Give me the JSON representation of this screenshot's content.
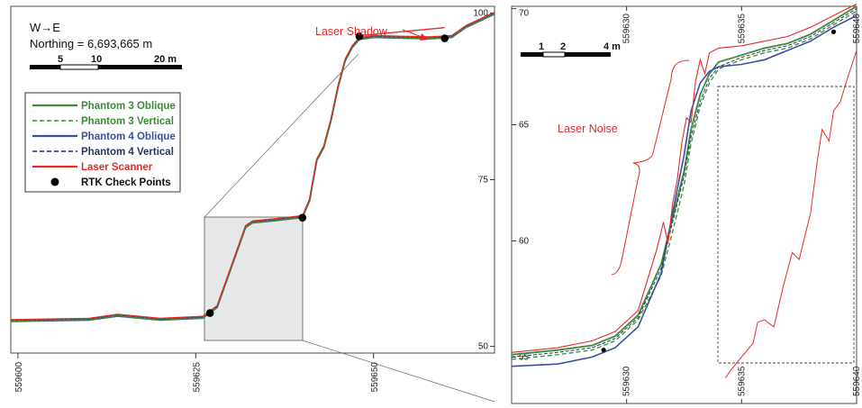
{
  "header": {
    "direction": "W→E",
    "northing": "Northing = 6,693,665 m"
  },
  "colors": {
    "phantom3": "#3a8a3a",
    "phantom4": "#3b4fa0",
    "phantom4_vertical": "#2b3560",
    "laser": "#e8292a",
    "annotation": "#e8292a",
    "check_point": "#000000",
    "zoom_box": "#e6e7e9"
  },
  "left_scale": {
    "ticks": [
      "5",
      "10",
      "20 m"
    ]
  },
  "right_scale": {
    "ticks": [
      "1",
      "2",
      "4 m"
    ]
  },
  "annotations": {
    "laser_shadow": "Laser Shadow",
    "laser_noise": "Laser Noise"
  },
  "legend": [
    {
      "label": "Phantom 3 Oblique",
      "style": "solid",
      "color_key": "phantom3"
    },
    {
      "label": "Phantom 3 Vertical",
      "style": "dashed",
      "color_key": "phantom3"
    },
    {
      "label": "Phantom 4 Oblique",
      "style": "solid",
      "color_key": "phantom4"
    },
    {
      "label": "Phantom 4 Vertical",
      "style": "dashed",
      "color_key": "phantom4_vertical"
    },
    {
      "label": "Laser Scanner",
      "style": "solid",
      "color_key": "laser"
    },
    {
      "label": "RTK Check Points",
      "style": "dot",
      "color_key": "check_point"
    }
  ],
  "chart_data": [
    {
      "type": "line",
      "panel": "full-profile",
      "x_ticks": [
        559600,
        559625,
        559650
      ],
      "x_tick_labels": [
        "559600",
        "559625",
        "559650"
      ],
      "y_ticks": [
        100,
        75,
        50
      ],
      "y_tick_labels": [
        "100",
        "75",
        "50"
      ],
      "xlim": [
        559599,
        559667
      ],
      "ylim": [
        49,
        101
      ],
      "grid": false,
      "legend_position": "left",
      "profile": {
        "x": [
          559599,
          559610,
          559614,
          559620,
          559626,
          559628,
          559630,
          559632,
          559633,
          559636,
          559640,
          559641,
          559642,
          559643,
          559644,
          559645,
          559646,
          559647,
          559648,
          559650,
          559654,
          559658,
          559661,
          559663,
          559667
        ],
        "y": [
          53.9,
          54.1,
          54.7,
          54.1,
          54.4,
          56,
          62,
          68,
          68.7,
          69,
          69.5,
          72,
          78,
          80,
          84,
          89,
          93,
          95,
          96.2,
          96.5,
          96.4,
          96.3,
          96.5,
          98,
          100
        ]
      },
      "laser_shadow_x": [
        559648,
        559660
      ],
      "laser_shadow_y": [
        96.6,
        97.8
      ],
      "rtk_check_points": [
        {
          "x": 559627,
          "y": 55.0
        },
        {
          "x": 559640,
          "y": 69.3
        },
        {
          "x": 559648,
          "y": 96.5
        },
        {
          "x": 559660,
          "y": 96.2
        }
      ]
    },
    {
      "type": "line",
      "panel": "zoomed-profile",
      "x_ticks": [
        559630,
        559635,
        559640
      ],
      "x_tick_labels": [
        "559630",
        "559635",
        "559640"
      ],
      "top_x_tick_labels": [
        "559630",
        "559635",
        "559640"
      ],
      "y_ticks": [
        55,
        60,
        65,
        70
      ],
      "y_tick_labels": [
        "55",
        "60",
        "65",
        "70"
      ],
      "xlim": [
        559625,
        559640
      ],
      "ylim": [
        53,
        70.1
      ],
      "grid": false,
      "series": [
        {
          "name": "Phantom 3 Oblique",
          "x": [
            559625,
            559627,
            559628.5,
            559629.5,
            559630.5,
            559631.5,
            559632,
            559632.5,
            559632.8,
            559633.2,
            559633.6,
            559634,
            559635,
            559636,
            559637,
            559638,
            559639,
            559640
          ],
          "y": [
            55.1,
            55.3,
            55.5,
            55.9,
            56.8,
            59.0,
            61.0,
            63.0,
            64.8,
            66.3,
            67.2,
            67.7,
            68.0,
            68.3,
            68.5,
            68.9,
            69.5,
            70.1
          ]
        },
        {
          "name": "Phantom 3 Vertical",
          "x": [
            559625,
            559627,
            559628.5,
            559629.5,
            559630.5,
            559631.5,
            559632,
            559632.5,
            559632.8,
            559633.2,
            559633.6,
            559634,
            559635,
            559636,
            559637,
            559638,
            559639,
            559640
          ],
          "y": [
            54.9,
            55.1,
            55.3,
            55.7,
            56.6,
            58.5,
            60.4,
            62.4,
            64.2,
            65.8,
            66.8,
            67.4,
            67.8,
            68.1,
            68.3,
            68.7,
            69.3,
            69.9
          ]
        },
        {
          "name": "Phantom 4 Oblique",
          "x": [
            559625,
            559627,
            559628.5,
            559629.5,
            559630.5,
            559631.5,
            559632,
            559632.5,
            559632.8,
            559633.2,
            559633.6,
            559634,
            559635,
            559636,
            559637,
            559638,
            559639,
            559640
          ],
          "y": [
            54.6,
            54.7,
            55.0,
            55.4,
            56.3,
            58.6,
            61.2,
            63.7,
            65.6,
            66.8,
            67.3,
            67.5,
            67.6,
            67.8,
            68.2,
            68.6,
            69.2,
            69.7
          ]
        },
        {
          "name": "Phantom 4 Vertical",
          "x": [
            559625,
            559627,
            559628.5,
            559629.5,
            559630.5,
            559631.5,
            559632,
            559632.5,
            559632.8,
            559633.2,
            559633.6,
            559634,
            559635,
            559636,
            559637,
            559638,
            559639,
            559640
          ],
          "y": [
            55.0,
            55.2,
            55.4,
            55.8,
            56.7,
            58.8,
            60.8,
            62.8,
            64.5,
            66.0,
            67.0,
            67.5,
            67.9,
            68.2,
            68.4,
            68.8,
            69.4,
            70.0
          ]
        },
        {
          "name": "Laser Scanner",
          "x": [
            559625,
            559627,
            559628.5,
            559629.5,
            559630.5,
            559631.3,
            559631.6,
            559631.8,
            559632.0,
            559632.2,
            559632.4,
            559632.6,
            559632.8,
            559633.0,
            559633.2,
            559633.4,
            559633.6,
            559634,
            559635,
            559636,
            559637,
            559638,
            559639,
            559640
          ],
          "y": [
            55.2,
            55.4,
            55.7,
            56.1,
            57.0,
            59.6,
            60.8,
            59.9,
            61.6,
            62.6,
            64.2,
            65.3,
            65.1,
            66.9,
            67.8,
            67.2,
            68.1,
            68.3,
            68.4,
            68.6,
            68.8,
            69.2,
            69.7,
            70.2
          ]
        }
      ],
      "laser_noise_x": [
        559634.3,
        559634.5,
        559635.0,
        559635.5,
        559635.7,
        559636.0,
        559636.4,
        559636.8,
        559637.2,
        559637.5,
        559637.8,
        559638.0,
        559638.3,
        559638.5,
        559638.8,
        559639.0,
        559639.3,
        559639.6,
        559639.8,
        559640.0
      ],
      "laser_noise_y": [
        54.1,
        54.4,
        55.0,
        55.6,
        56.5,
        56.6,
        56.3,
        58.0,
        59.5,
        59.2,
        60.4,
        61.2,
        63.5,
        64.8,
        64.3,
        65.6,
        66.0,
        67.0,
        67.6,
        68.2
      ],
      "rtk_check_points": [
        {
          "x": 559629,
          "y": 55.3
        },
        {
          "x": 559639,
          "y": 69.0
        }
      ]
    }
  ]
}
